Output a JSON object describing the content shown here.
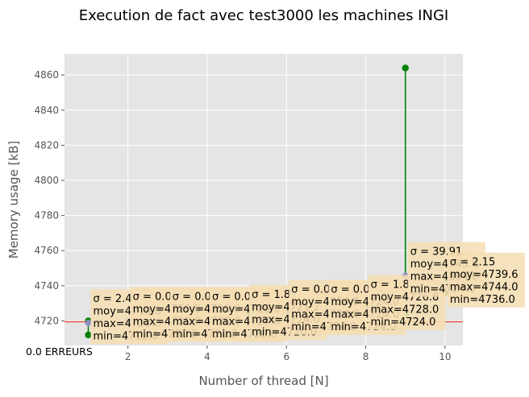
{
  "chart_data": {
    "type": "line",
    "title": "Execution de fact avec test3000 les machines INGI",
    "xlabel": "Number of thread [N]",
    "ylabel": "Memory usage [kB]",
    "xlim": [
      0.4,
      10.45
    ],
    "ylim": [
      4706,
      4872
    ],
    "xticks": [
      2,
      4,
      6,
      8,
      10
    ],
    "yticks": [
      4720,
      4740,
      4760,
      4780,
      4800,
      4820,
      4840,
      4860
    ],
    "grid": true,
    "background": "#e5e5e5",
    "reference_line": {
      "y": 4719.5,
      "color": "#e24a33"
    },
    "errors_label": "0.0 ERREURS",
    "colors": {
      "range": "#008000",
      "mean": "#9b8fd6",
      "box": "#f5deb3",
      "ref": "#e24a33"
    },
    "points": [
      {
        "x": 1,
        "mean": 4718.8,
        "min": 4712.0,
        "max": 4720.0,
        "labels": [
          "σ = 2.4",
          "moy=4718.8",
          "max=4720.0",
          "min=4712.0"
        ]
      },
      {
        "x": 2,
        "mean": 4720.0,
        "min": 4720.0,
        "max": 4720.0,
        "labels": [
          "σ = 0.0",
          "moy=4720.0",
          "max=4720.0",
          "min=4720.0"
        ]
      },
      {
        "x": 3,
        "mean": 4720.0,
        "min": 4720.0,
        "max": 4720.0,
        "labels": [
          "σ = 0.0",
          "moy=4720.0",
          "max=4720.0",
          "min=4720.0"
        ]
      },
      {
        "x": 4,
        "mean": 4720.0,
        "min": 4720.0,
        "max": 4720.0,
        "labels": [
          "σ = 0.0",
          "moy=4720.0",
          "max=4720.0",
          "min=4720.0"
        ]
      },
      {
        "x": 5,
        "mean": 4721.2,
        "min": 4720.0,
        "max": 4724.0,
        "labels": [
          "σ = 1.8",
          "moy=4721.2",
          "max=4724.0",
          "min=4720.0"
        ]
      },
      {
        "x": 6,
        "mean": 4724.0,
        "min": 4724.0,
        "max": 4724.0,
        "labels": [
          "σ = 0.0",
          "moy=4724.0",
          "max=4724.0",
          "min=4724.0"
        ]
      },
      {
        "x": 7,
        "mean": 4724.0,
        "min": 4724.0,
        "max": 4724.0,
        "labels": [
          "σ = 0.0",
          "moy=4724.0",
          "max=4724.0",
          "min=4724.0"
        ]
      },
      {
        "x": 8,
        "mean": 4726.8,
        "min": 4724.0,
        "max": 4728.0,
        "labels": [
          "σ = 1.8",
          "moy=4726.8",
          "max=4728.0",
          "min=4724.0"
        ]
      },
      {
        "x": 9,
        "mean": 4745.6,
        "min": 4724.0,
        "max": 4864.0,
        "labels": [
          "σ = 39.91",
          "moy=4745.6",
          "max=4864.0",
          "min=4724.0"
        ]
      },
      {
        "x": 10,
        "mean": 4739.6,
        "min": 4736.0,
        "max": 4744.0,
        "labels": [
          "σ = 2.15",
          "moy=4739.6",
          "max=4744.0",
          "min=4736.0"
        ]
      }
    ]
  }
}
